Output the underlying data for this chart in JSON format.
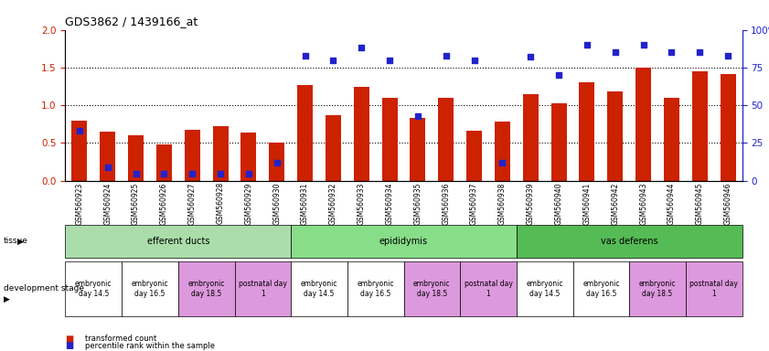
{
  "title": "GDS3862 / 1439166_at",
  "samples": [
    "GSM560923",
    "GSM560924",
    "GSM560925",
    "GSM560926",
    "GSM560927",
    "GSM560928",
    "GSM560929",
    "GSM560930",
    "GSM560931",
    "GSM560932",
    "GSM560933",
    "GSM560934",
    "GSM560935",
    "GSM560936",
    "GSM560937",
    "GSM560938",
    "GSM560939",
    "GSM560940",
    "GSM560941",
    "GSM560942",
    "GSM560943",
    "GSM560944",
    "GSM560945",
    "GSM560946"
  ],
  "transformed_count": [
    0.8,
    0.65,
    0.6,
    0.48,
    0.68,
    0.72,
    0.64,
    0.5,
    1.27,
    0.87,
    1.25,
    1.1,
    0.83,
    1.1,
    0.66,
    0.78,
    1.15,
    1.03,
    1.3,
    1.18,
    1.5,
    1.1,
    1.45,
    1.42
  ],
  "percentile_rank": [
    33,
    9,
    5,
    5,
    5,
    5,
    5,
    12,
    83,
    80,
    88,
    80,
    43,
    83,
    80,
    12,
    82,
    70,
    90,
    85,
    90,
    85,
    85,
    83
  ],
  "bar_color": "#cc2200",
  "dot_color": "#2222cc",
  "tissue_groups": [
    {
      "label": "efferent ducts",
      "start": 0,
      "end": 7,
      "color": "#aaddaa"
    },
    {
      "label": "epididymis",
      "start": 8,
      "end": 15,
      "color": "#88dd88"
    },
    {
      "label": "vas deferens",
      "start": 16,
      "end": 23,
      "color": "#55bb55"
    }
  ],
  "dev_stages": [
    {
      "label": "embryonic\nday 14.5",
      "start": 0,
      "end": 1,
      "color": "#ffffff"
    },
    {
      "label": "embryonic\nday 16.5",
      "start": 2,
      "end": 3,
      "color": "#ffffff"
    },
    {
      "label": "embryonic\nday 18.5",
      "start": 4,
      "end": 5,
      "color": "#dd99dd"
    },
    {
      "label": "postnatal day\n1",
      "start": 6,
      "end": 7,
      "color": "#dd99dd"
    },
    {
      "label": "embryonic\nday 14.5",
      "start": 8,
      "end": 9,
      "color": "#ffffff"
    },
    {
      "label": "embryonic\nday 16.5",
      "start": 10,
      "end": 11,
      "color": "#ffffff"
    },
    {
      "label": "embryonic\nday 18.5",
      "start": 12,
      "end": 13,
      "color": "#dd99dd"
    },
    {
      "label": "postnatal day\n1",
      "start": 14,
      "end": 15,
      "color": "#dd99dd"
    },
    {
      "label": "embryonic\nday 14.5",
      "start": 16,
      "end": 17,
      "color": "#ffffff"
    },
    {
      "label": "embryonic\nday 16.5",
      "start": 18,
      "end": 19,
      "color": "#ffffff"
    },
    {
      "label": "embryonic\nday 18.5",
      "start": 20,
      "end": 21,
      "color": "#dd99dd"
    },
    {
      "label": "postnatal day\n1",
      "start": 22,
      "end": 23,
      "color": "#dd99dd"
    }
  ],
  "ylim_left": [
    0,
    2.0
  ],
  "ylim_right": [
    0,
    100
  ],
  "yticks_left": [
    0,
    0.5,
    1.0,
    1.5,
    2.0
  ],
  "yticks_right": [
    0,
    25,
    50,
    75,
    100
  ],
  "hlines": [
    0.5,
    1.0,
    1.5
  ],
  "bar_width": 0.55
}
